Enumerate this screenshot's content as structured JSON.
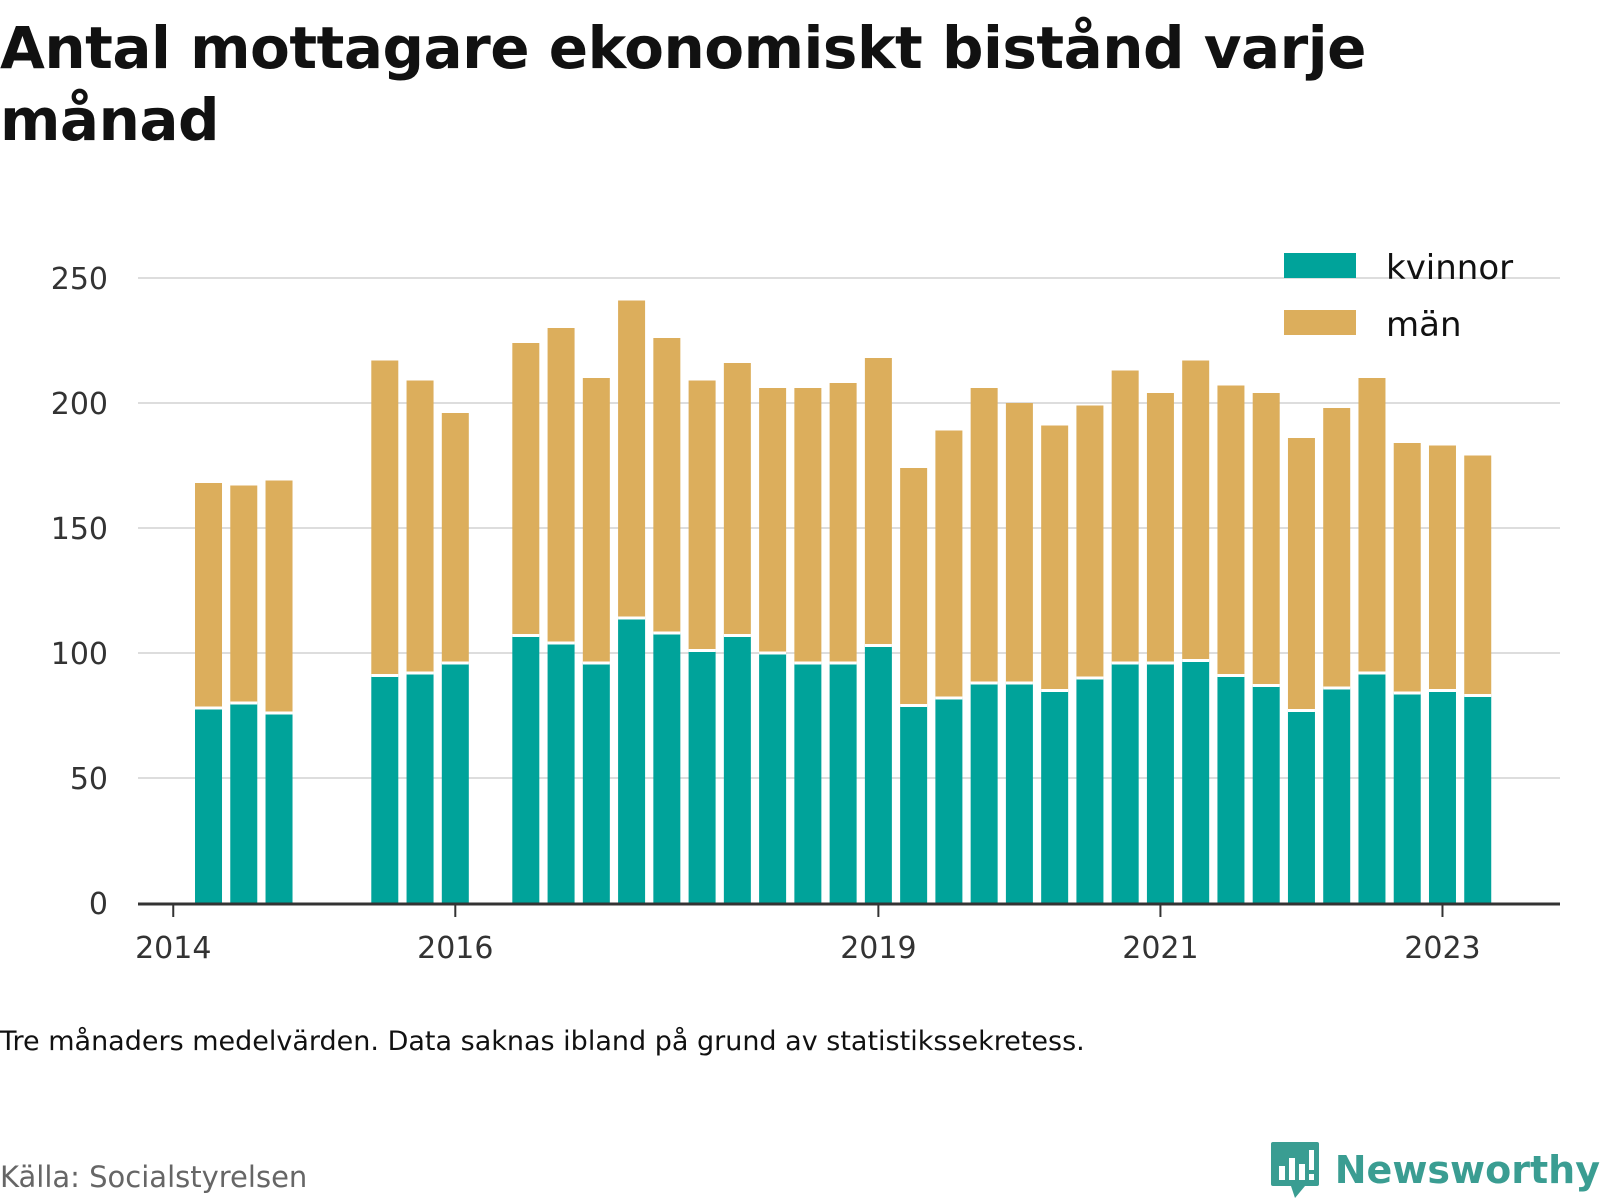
{
  "title": "Antal mottagare ekonomiskt bistånd varje månad",
  "note": "Tre månaders medelvärden. Data saknas ibland på grund av statistikssekretess.",
  "source": "Källa: Socialstyrelsen",
  "logo_text": "Newsworthy",
  "colors": {
    "kvinnor": "#00a39a",
    "man": "#dcae5c",
    "grid": "#dddddd",
    "axis": "#333333"
  },
  "chart_data": {
    "type": "bar",
    "stacked": true,
    "title": "Antal mottagare ekonomiskt bistånd varje månad",
    "xlabel": "",
    "ylabel": "",
    "ylim": [
      0,
      250
    ],
    "yticks": [
      0,
      50,
      100,
      150,
      200,
      250
    ],
    "xticks": [
      {
        "label": "2014",
        "date": "2014-01"
      },
      {
        "label": "2016",
        "date": "2016-01"
      },
      {
        "label": "2019",
        "date": "2019-01"
      },
      {
        "label": "2021",
        "date": "2021-01"
      },
      {
        "label": "2023",
        "date": "2023-01"
      }
    ],
    "x_range": [
      "2013-10",
      "2023-11"
    ],
    "legend": {
      "position": "top-right",
      "entries": [
        "kvinnor",
        "män"
      ]
    },
    "grid": true,
    "x": [
      "2014-04",
      "2014-07",
      "2014-10",
      "2015-07",
      "2015-10",
      "2016-01",
      "2016-07",
      "2016-10",
      "2017-01",
      "2017-04",
      "2017-07",
      "2017-10",
      "2018-01",
      "2018-04",
      "2018-07",
      "2018-10",
      "2019-01",
      "2019-04",
      "2019-07",
      "2019-10",
      "2020-01",
      "2020-04",
      "2020-07",
      "2020-10",
      "2021-01",
      "2021-04",
      "2021-07",
      "2021-10",
      "2022-01",
      "2022-04",
      "2022-07",
      "2022-10",
      "2023-01",
      "2023-04"
    ],
    "series": [
      {
        "name": "kvinnor",
        "values": [
          78,
          80,
          76,
          91,
          92,
          96,
          107,
          104,
          96,
          114,
          108,
          101,
          107,
          100,
          96,
          96,
          103,
          79,
          82,
          88,
          88,
          85,
          90,
          96,
          96,
          97,
          91,
          87,
          77,
          86,
          92,
          84,
          85,
          83
        ]
      },
      {
        "name": "män",
        "values": [
          90,
          87,
          93,
          126,
          117,
          100,
          117,
          126,
          114,
          127,
          118,
          108,
          109,
          106,
          110,
          112,
          115,
          95,
          107,
          118,
          112,
          106,
          109,
          117,
          108,
          120,
          116,
          117,
          109,
          112,
          118,
          100,
          98,
          96
        ]
      }
    ]
  }
}
